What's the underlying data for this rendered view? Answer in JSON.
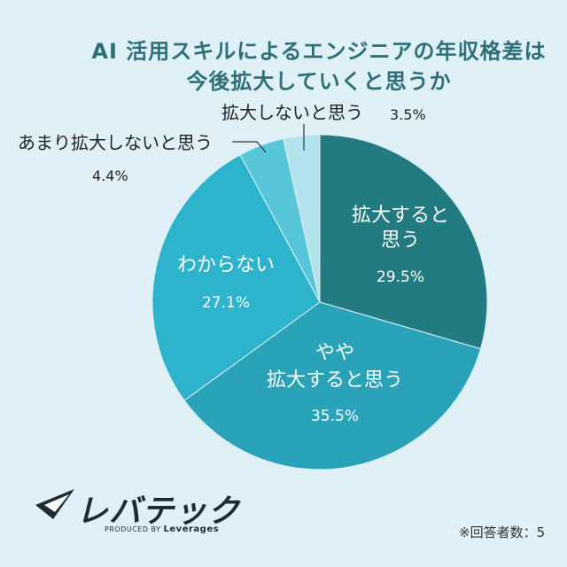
{
  "title": [
    "AI 活用スキルによるエンジニアの年収格差は",
    "今後拡大していくと思うか"
  ],
  "chart_data": {
    "type": "pie",
    "title": "AI 活用スキルによるエンジニアの年収格差は今後拡大していくと思うか",
    "slices": [
      {
        "label": "拡大すると思う",
        "value": 29.5,
        "label_lines": [
          "拡大すると",
          "思う"
        ],
        "color": "#237b82"
      },
      {
        "label": "やや拡大すると思う",
        "value": 35.5,
        "label_lines": [
          "やや",
          "拡大すると思う"
        ],
        "color": "#2aa3b8"
      },
      {
        "label": "わからない",
        "value": 27.1,
        "label_lines": [
          "わからない"
        ],
        "color": "#2db3cc"
      },
      {
        "label": "あまり拡大しないと思う",
        "value": 4.4,
        "label_lines": [
          "あまり拡大しないと思う"
        ],
        "color": "#56c6d8"
      },
      {
        "label": "拡大しないと思う",
        "value": 3.5,
        "label_lines": [
          "拡大しないと思う"
        ],
        "color": "#b3e4ee"
      }
    ],
    "unit": "%"
  },
  "logo": {
    "name": "レバテック",
    "produced_by": "PRODUCED BY",
    "brand": "Leverages"
  },
  "footnote": "※回答者数：5"
}
